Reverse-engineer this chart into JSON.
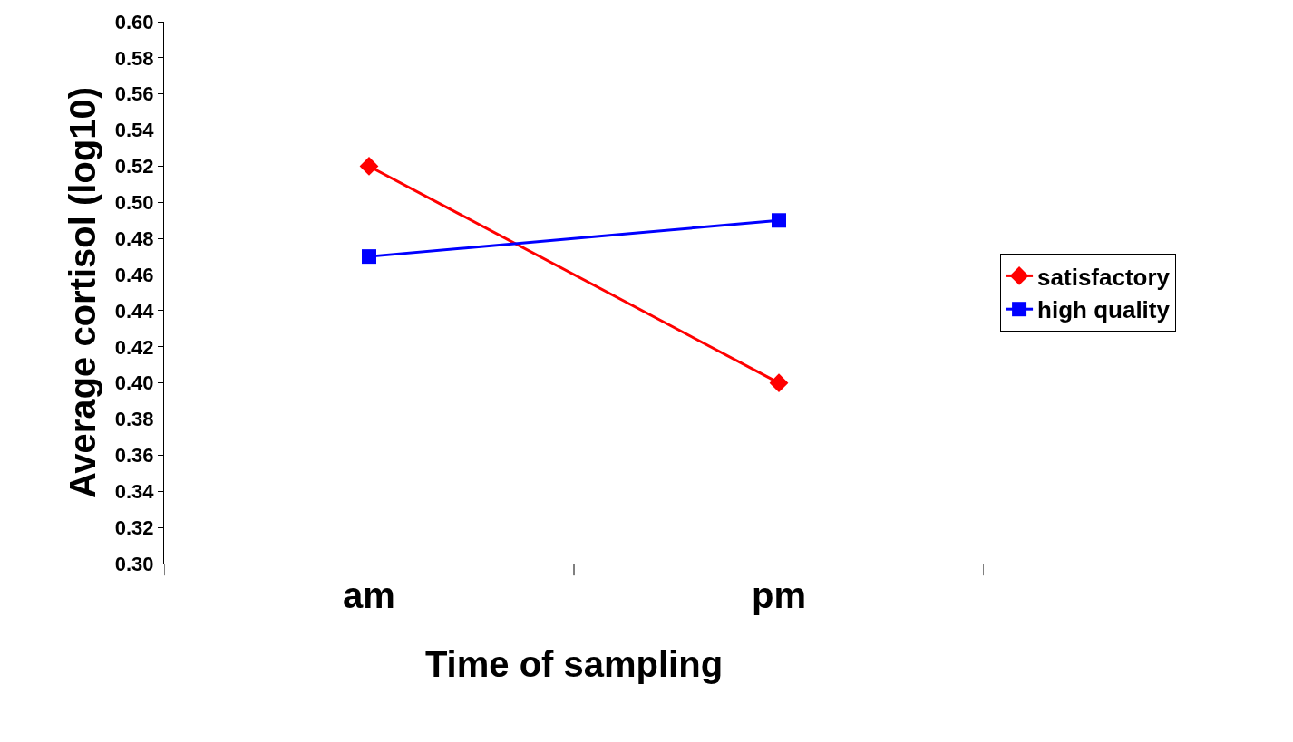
{
  "chart_data": {
    "type": "line",
    "xlabel": "Time of sampling",
    "ylabel": "Average cortisol (log10)",
    "categories": [
      "am",
      "pm"
    ],
    "series": [
      {
        "name": "satisfactory",
        "color": "#ff0000",
        "values": [
          0.52,
          0.4
        ],
        "marker": "diamond"
      },
      {
        "name": "high quality",
        "color": "#0000ff",
        "values": [
          0.47,
          0.49
        ],
        "marker": "square"
      }
    ],
    "ylim": [
      0.3,
      0.6
    ],
    "yticks": [
      {
        "value": 0.3,
        "label": "0.30"
      },
      {
        "value": 0.32,
        "label": "0.32"
      },
      {
        "value": 0.34,
        "label": "0.34"
      },
      {
        "value": 0.36,
        "label": "0.36"
      },
      {
        "value": 0.38,
        "label": "0.38"
      },
      {
        "value": 0.4,
        "label": "0.40"
      },
      {
        "value": 0.42,
        "label": "0.42"
      },
      {
        "value": 0.44,
        "label": "0.44"
      },
      {
        "value": 0.46,
        "label": "0.46"
      },
      {
        "value": 0.48,
        "label": "0.48"
      },
      {
        "value": 0.5,
        "label": "0.50"
      },
      {
        "value": 0.52,
        "label": "0.52"
      },
      {
        "value": 0.54,
        "label": "0.54"
      },
      {
        "value": 0.56,
        "label": "0.56"
      },
      {
        "value": 0.58,
        "label": "0.58"
      },
      {
        "value": 0.6,
        "label": "0.60"
      }
    ],
    "legend": "right",
    "line_style": "solid"
  }
}
